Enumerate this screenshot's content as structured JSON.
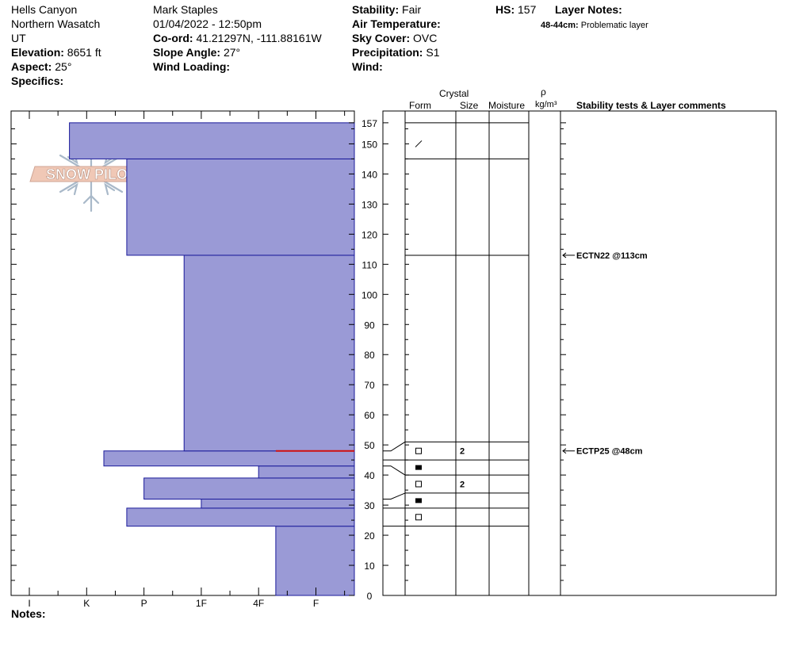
{
  "header": {
    "location_name": "Hells Canyon",
    "range": "Northern Wasatch",
    "state": "UT",
    "elevation_label": "Elevation:",
    "elevation_value": "8651 ft",
    "aspect_label": "Aspect:",
    "aspect_value": "25°",
    "specifics_label": "Specifics:",
    "observer": "Mark Staples",
    "datetime": "01/04/2022 - 12:50pm",
    "coord_label": "Co-ord:",
    "coord_value": "41.21297N, -111.88161W",
    "slope_label": "Slope Angle:",
    "slope_value": "27°",
    "wind_loading_label": "Wind Loading:",
    "stability_label": "Stability:",
    "stability_value": "Fair",
    "air_temp_label": "Air Temperature:",
    "sky_label": "Sky Cover:",
    "sky_value": "OVC",
    "precip_label": "Precipitation:",
    "precip_value": "S1",
    "wind_label": "Wind:",
    "hs_label": "HS:",
    "hs_value": "157",
    "layer_notes_label": "Layer Notes:",
    "layer_note_range": "48-44cm:",
    "layer_note_text": "Problematic layer"
  },
  "logo_text": "SNOW PILOT",
  "notes_label": "Notes:",
  "columns": {
    "crystal": "Crystal",
    "form": "Form",
    "size": "Size",
    "moisture": "Moisture",
    "rho": "ρ",
    "density_unit": "kg/m³",
    "stability": "Stability tests & Layer comments"
  },
  "colors": {
    "hardness_fill": "#9a9ad6",
    "hardness_stroke": "#1a1a9a",
    "weak_layer": "#d01010"
  },
  "chart_data": {
    "type": "bar",
    "title": "",
    "ylabel": "",
    "ylim": [
      0,
      160
    ],
    "y_ticks": [
      0,
      10,
      20,
      30,
      40,
      50,
      60,
      70,
      80,
      90,
      100,
      110,
      120,
      130,
      140,
      150,
      157
    ],
    "hardness_scale": [
      "I",
      "K",
      "P",
      "1F",
      "4F",
      "F"
    ],
    "hand_hardness_layers": [
      {
        "bottom": 0,
        "top": 23,
        "hardness_index": 4.3
      },
      {
        "bottom": 23,
        "top": 29,
        "hardness_index": 1.7
      },
      {
        "bottom": 29,
        "top": 32,
        "hardness_index": 3.0
      },
      {
        "bottom": 32,
        "top": 39,
        "hardness_index": 2.0
      },
      {
        "bottom": 39,
        "top": 43,
        "hardness_index": 4.0
      },
      {
        "bottom": 43,
        "top": 48,
        "hardness_index": 1.3
      },
      {
        "bottom": 48,
        "top": 113,
        "hardness_index": 2.7
      },
      {
        "bottom": 113,
        "top": 145,
        "hardness_index": 1.7
      },
      {
        "bottom": 145,
        "top": 157,
        "hardness_index": 0.7
      }
    ],
    "weak_layer_height": 48,
    "layer_boundaries": [
      157,
      145,
      113,
      51,
      45,
      40,
      34,
      29,
      23
    ],
    "crystal_rows": [
      {
        "row_top": 51,
        "row_bottom": 45,
        "layer_top": 48,
        "layer_bottom": 45,
        "form": "open-square",
        "size": "2"
      },
      {
        "row_top": 45,
        "row_bottom": 40,
        "layer_top": 45,
        "layer_bottom": 43,
        "form": "filled-square",
        "size": ""
      },
      {
        "row_top": 40,
        "row_bottom": 34,
        "layer_top": 43,
        "layer_bottom": 33,
        "form": "open-square",
        "size": "2"
      },
      {
        "row_top": 34,
        "row_bottom": 29,
        "layer_top": 32,
        "layer_bottom": 29,
        "form": "filled-square",
        "size": ""
      },
      {
        "row_top": 29,
        "row_bottom": 23,
        "layer_top": 29,
        "layer_bottom": 23,
        "form": "open-square",
        "size": ""
      }
    ],
    "upper_form_symbol_height": 150,
    "stability_tests": [
      {
        "height": 113,
        "label": "ECTN22 @113cm"
      },
      {
        "height": 48,
        "label": "ECTP25 @48cm"
      }
    ]
  }
}
